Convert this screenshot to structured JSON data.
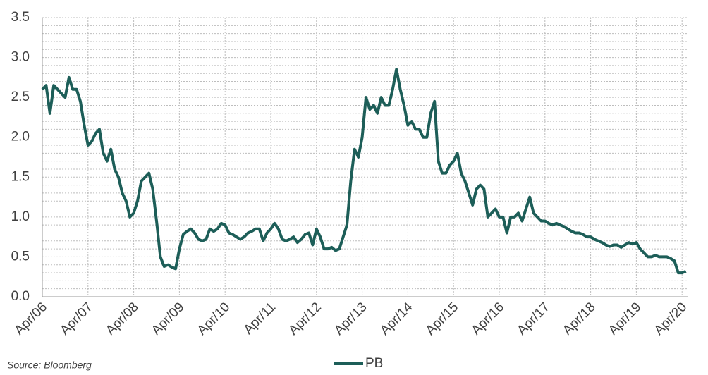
{
  "chart_data": {
    "type": "line",
    "source": "Source: Bloomberg",
    "categories": [
      "Apr/06",
      null,
      null,
      null,
      null,
      null,
      null,
      null,
      null,
      null,
      null,
      null,
      "Apr/07",
      null,
      null,
      null,
      null,
      null,
      null,
      null,
      null,
      null,
      null,
      null,
      "Apr/08",
      null,
      null,
      null,
      null,
      null,
      null,
      null,
      null,
      null,
      null,
      null,
      "Apr/09",
      null,
      null,
      null,
      null,
      null,
      null,
      null,
      null,
      null,
      null,
      null,
      "Apr/10",
      null,
      null,
      null,
      null,
      null,
      null,
      null,
      null,
      null,
      null,
      null,
      "Apr/11",
      null,
      null,
      null,
      null,
      null,
      null,
      null,
      null,
      null,
      null,
      null,
      "Apr/12",
      null,
      null,
      null,
      null,
      null,
      null,
      null,
      null,
      null,
      null,
      null,
      "Apr/13",
      null,
      null,
      null,
      null,
      null,
      null,
      null,
      null,
      null,
      null,
      null,
      "Apr/14",
      null,
      null,
      null,
      null,
      null,
      null,
      null,
      null,
      null,
      null,
      null,
      "Apr/15",
      null,
      null,
      null,
      null,
      null,
      null,
      null,
      null,
      null,
      null,
      null,
      "Apr/16",
      null,
      null,
      null,
      null,
      null,
      null,
      null,
      null,
      null,
      null,
      null,
      "Apr/17",
      null,
      null,
      null,
      null,
      null,
      null,
      null,
      null,
      null,
      null,
      null,
      "Apr/18",
      null,
      null,
      null,
      null,
      null,
      null,
      null,
      null,
      null,
      null,
      null,
      "Apr/19",
      null,
      null,
      null,
      null,
      null,
      null,
      null,
      null,
      null,
      null,
      null,
      "Apr/20",
      null
    ],
    "series": [
      {
        "name": "PB",
        "color": "#1d5e58",
        "values": [
          2.6,
          2.65,
          2.3,
          2.65,
          2.6,
          2.55,
          2.5,
          2.75,
          2.6,
          2.6,
          2.45,
          2.15,
          1.9,
          1.95,
          2.05,
          2.1,
          1.8,
          1.7,
          1.85,
          1.6,
          1.5,
          1.3,
          1.2,
          1.0,
          1.05,
          1.2,
          1.45,
          1.5,
          1.55,
          1.35,
          0.95,
          0.5,
          0.38,
          0.4,
          0.37,
          0.35,
          0.6,
          0.78,
          0.82,
          0.85,
          0.8,
          0.72,
          0.7,
          0.72,
          0.85,
          0.82,
          0.85,
          0.92,
          0.9,
          0.8,
          0.78,
          0.75,
          0.72,
          0.75,
          0.8,
          0.82,
          0.85,
          0.85,
          0.7,
          0.8,
          0.85,
          0.92,
          0.85,
          0.72,
          0.7,
          0.72,
          0.75,
          0.68,
          0.72,
          0.78,
          0.8,
          0.65,
          0.85,
          0.75,
          0.6,
          0.6,
          0.62,
          0.58,
          0.6,
          0.75,
          0.9,
          1.45,
          1.85,
          1.75,
          2.0,
          2.5,
          2.35,
          2.4,
          2.3,
          2.5,
          2.4,
          2.4,
          2.6,
          2.85,
          2.6,
          2.4,
          2.15,
          2.2,
          2.1,
          2.1,
          2.0,
          2.0,
          2.3,
          2.45,
          1.7,
          1.55,
          1.55,
          1.65,
          1.7,
          1.8,
          1.55,
          1.45,
          1.3,
          1.15,
          1.35,
          1.4,
          1.35,
          1.0,
          1.05,
          1.1,
          1.0,
          1.0,
          0.8,
          1.0,
          1.0,
          1.05,
          0.95,
          1.1,
          1.25,
          1.05,
          1.0,
          0.95,
          0.95,
          0.92,
          0.9,
          0.92,
          0.9,
          0.88,
          0.85,
          0.82,
          0.8,
          0.8,
          0.78,
          0.75,
          0.75,
          0.72,
          0.7,
          0.68,
          0.65,
          0.63,
          0.65,
          0.65,
          0.62,
          0.65,
          0.68,
          0.66,
          0.68,
          0.6,
          0.55,
          0.5,
          0.5,
          0.52,
          0.5,
          0.5,
          0.5,
          0.48,
          0.45,
          0.3,
          0.3,
          0.32
        ]
      }
    ],
    "ylim": [
      0,
      3.5
    ],
    "yticks": [
      {
        "value": 0,
        "label": "0.0"
      },
      {
        "value": 0.5,
        "label": "0.5"
      },
      {
        "value": 1,
        "label": "1.0"
      },
      {
        "value": 1.5,
        "label": "1.5"
      },
      {
        "value": 2,
        "label": "2.0"
      },
      {
        "value": 2.5,
        "label": "2.5"
      },
      {
        "value": 3,
        "label": "3.0"
      },
      {
        "value": 3.5,
        "label": "3.5"
      }
    ],
    "yminorticks": [
      0.1,
      0.2,
      0.3,
      0.4,
      0.6,
      0.7,
      0.8,
      0.9,
      1.1,
      1.2,
      1.3,
      1.4,
      1.6,
      1.7,
      1.8,
      1.9,
      2.1,
      2.2,
      2.3,
      2.4,
      2.6,
      2.7,
      2.8,
      2.9,
      3.1,
      3.2,
      3.3,
      3.4
    ],
    "grid": true,
    "legend": "bottom"
  }
}
